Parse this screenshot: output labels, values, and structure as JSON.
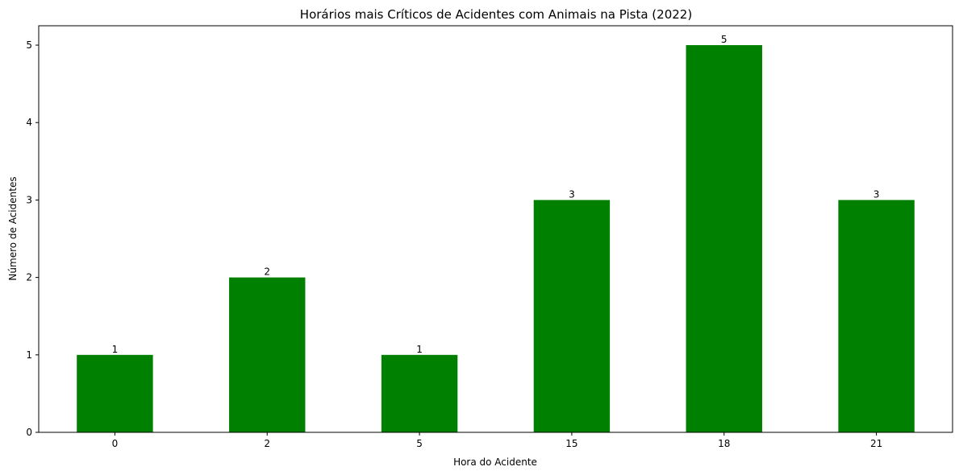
{
  "chart_data": {
    "type": "bar",
    "title": "Horários mais Críticos de Acidentes com Animais na Pista (2022)",
    "xlabel": "Hora do Acidente",
    "ylabel": "Número de Acidentes",
    "categories": [
      "0",
      "2",
      "5",
      "15",
      "18",
      "21"
    ],
    "values": [
      1,
      2,
      1,
      3,
      5,
      3
    ],
    "data_labels": [
      "1",
      "2",
      "1",
      "3",
      "5",
      "3"
    ],
    "yticks": [
      "0",
      "1",
      "2",
      "3",
      "4",
      "5"
    ],
    "ylim": [
      0,
      5.25
    ],
    "bar_color": "#008000",
    "grid": false,
    "legend": "none"
  }
}
